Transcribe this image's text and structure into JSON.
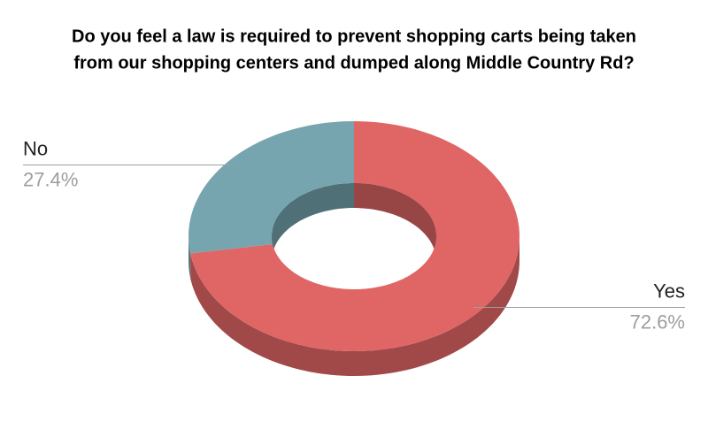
{
  "chart_data": {
    "type": "pie",
    "donut": true,
    "three_d": true,
    "title": [
      "Do you feel a law is required to prevent shopping carts being taken",
      "from our shopping centers and dumped along Middle Country Rd?"
    ],
    "categories": [
      "Yes",
      "No"
    ],
    "values": [
      72.6,
      27.4
    ],
    "value_labels": [
      "72.6%",
      "27.4%"
    ],
    "colors": [
      "#e06666",
      "#76a5af"
    ]
  }
}
